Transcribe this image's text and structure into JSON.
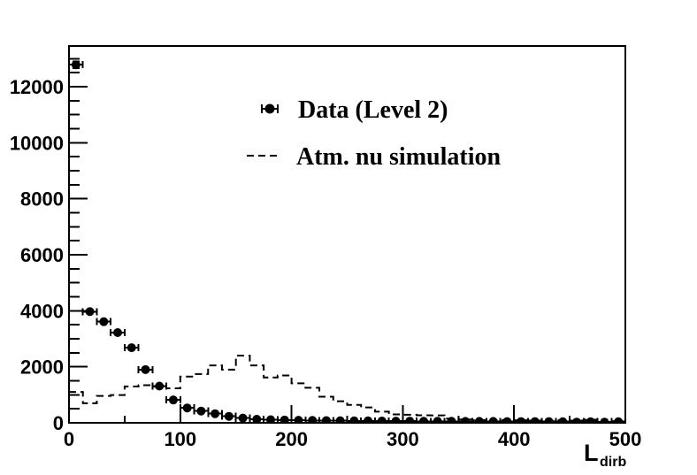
{
  "figure": {
    "background_color": "#ffffff",
    "line_color": "#000000"
  },
  "chart_data": {
    "type": "histogram",
    "title": "",
    "xlabel_main": "L",
    "xlabel_sub": "dirb",
    "ylabel": "",
    "x_range": [
      0,
      500
    ],
    "y_range": [
      0,
      13450
    ],
    "bin_width": 12.5,
    "bin_centers": [
      6.25,
      18.75,
      31.25,
      43.75,
      56.25,
      68.75,
      81.25,
      93.75,
      106.25,
      118.75,
      131.25,
      143.75,
      156.25,
      168.75,
      181.25,
      193.75,
      206.25,
      218.75,
      231.25,
      243.75,
      256.25,
      268.75,
      281.25,
      293.75,
      306.25,
      318.75,
      331.25,
      343.75,
      356.25,
      368.75,
      381.25,
      393.75,
      406.25,
      418.75,
      431.25,
      443.75,
      456.25,
      468.75,
      481.25,
      493.75
    ],
    "series": [
      {
        "name": "Data (Level 2)",
        "style": "points-with-errors",
        "marker": "filled-circle",
        "color": "#000000",
        "values": [
          12780,
          3970,
          3610,
          3220,
          2680,
          1900,
          1310,
          815,
          530,
          420,
          325,
          230,
          170,
          125,
          110,
          100,
          90,
          85,
          80,
          75,
          70,
          70,
          65,
          60,
          60,
          55,
          55,
          55,
          50,
          50,
          50,
          45,
          45,
          45,
          45,
          40,
          25,
          40,
          25,
          40
        ]
      },
      {
        "name": "Atm. nu simulation",
        "style": "dashed-step",
        "color": "#000000",
        "values": [
          1100,
          700,
          960,
          990,
          1300,
          1340,
          1290,
          1230,
          1650,
          1740,
          2050,
          1900,
          2400,
          2050,
          1620,
          1690,
          1410,
          1250,
          930,
          770,
          640,
          550,
          400,
          300,
          290,
          270,
          265,
          150,
          120,
          100,
          90,
          100,
          90,
          80,
          70,
          90,
          80,
          110,
          70,
          60
        ]
      }
    ],
    "x_ticks": {
      "major_values": [
        0,
        100,
        200,
        300,
        400,
        500
      ],
      "major_labels": [
        "0",
        "100",
        "200",
        "300",
        "400",
        "500"
      ],
      "minor_values": [
        50,
        150,
        250,
        350,
        450
      ]
    },
    "y_ticks": {
      "major_values": [
        0,
        2000,
        4000,
        6000,
        8000,
        10000,
        12000
      ],
      "major_labels": [
        "0",
        "2000",
        "4000",
        "6000",
        "8000",
        "10000",
        "12000"
      ],
      "minor_step": 500
    },
    "legend": {
      "position": "top-center",
      "items": [
        {
          "label": "Data (Level 2)",
          "symbol": "circle-with-error-bar"
        },
        {
          "label": "Atm. nu simulation",
          "symbol": "dashed-line"
        }
      ]
    },
    "grid": false
  }
}
